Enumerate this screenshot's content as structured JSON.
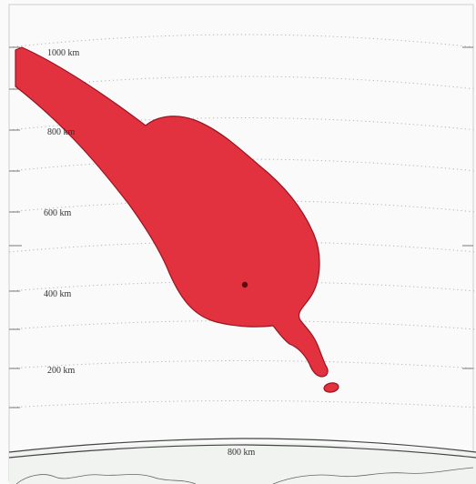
{
  "map": {
    "range_labels": {
      "r1000": "1000 km",
      "r800": "800 km",
      "r600": "600 km",
      "r400": "400 km",
      "r200": "200 km",
      "bottom": "800 km"
    },
    "colors": {
      "footprint_fill": "#e2313f",
      "footprint_outline": "#9a1420",
      "impact_point": "#5a0a10",
      "range_rings": "#b4b4b4",
      "coastline": "#444444"
    },
    "grid": "dotted range rings",
    "features": [
      "red footprint polygon",
      "impact point marker",
      "coastline"
    ]
  }
}
